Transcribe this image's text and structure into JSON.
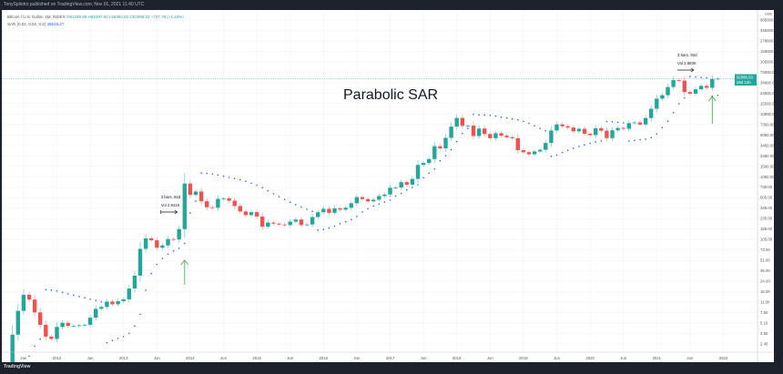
{
  "header": {
    "published": "TonySpilotro published on TradingView.com, Nov 01, 2021 11:40 UTC"
  },
  "legend": {
    "symbol": "Bitcoin / U.S. Dollar, 1M, INDEX",
    "open": "O61299.86",
    "high": "H62497.50",
    "low": "L59484.82",
    "close": "C62086.03",
    "change": "+727.78 (+1.19%)",
    "sar_label": "SAR (0.02, 0.02, 0.2)",
    "sar_value": "39519.27"
  },
  "footer": {
    "logo": "TradingView"
  },
  "colors": {
    "up": "#26a69a",
    "down": "#ef5350",
    "sar": "#2962ff",
    "arrow": "#4caf50"
  },
  "chart_data": {
    "type": "candlestick",
    "title": "Parabolic SAR",
    "scale": "log",
    "currency": "USD",
    "start": "2011-02",
    "interval": "1M",
    "closes": [
      0.86,
      0.78,
      3.5,
      8.7,
      16.1,
      13.4,
      8.2,
      5.1,
      3.25,
      2.97,
      4.7,
      5.5,
      4.9,
      4.9,
      5.0,
      5.1,
      6.7,
      9.4,
      10.1,
      12.4,
      11.2,
      12.6,
      13.5,
      20.4,
      33.4,
      93,
      139,
      129,
      97,
      106,
      135,
      133,
      198,
      1130,
      732,
      832,
      573,
      457,
      447,
      628,
      640,
      586,
      478,
      388,
      338,
      378,
      320,
      217,
      254,
      244,
      236,
      230,
      263,
      285,
      231,
      236,
      314,
      377,
      430,
      368,
      437,
      416,
      448,
      531,
      673,
      624,
      573,
      608,
      700,
      742,
      963,
      970,
      1190,
      1080,
      1350,
      2300,
      2480,
      2875,
      4700,
      4340,
      6470,
      9950,
      13850,
      10220,
      10330,
      6930,
      9240,
      7490,
      6390,
      7730,
      7030,
      6630,
      6370,
      4040,
      3740,
      3460,
      3850,
      4100,
      5320,
      8570,
      10820,
      10080,
      9600,
      8300,
      9150,
      7570,
      7200,
      9350,
      8520,
      6410,
      8630,
      9450,
      9140,
      11350,
      11650,
      10780,
      13800,
      19700,
      28990,
      33100,
      45200,
      58800,
      57700,
      37300,
      35040,
      41460,
      47100,
      43800,
      61300,
      62086.03
    ],
    "y_ticks": [
      "585000.00",
      "345000.00",
      "278000.00",
      "155000.00",
      "105000.00",
      "73000.00",
      "34600.00",
      "23500.00",
      "15500.00",
      "10900.00",
      "7300.00",
      "5050.00",
      "3450.00",
      "2350.00",
      "1590.00",
      "1050.00",
      "730.00",
      "505.00",
      "345.00",
      "235.00",
      "155.00",
      "105.00",
      "73.00",
      "51.00",
      "35.00",
      "24.00",
      "16.00",
      "11.00",
      "7.50",
      "5.10",
      "3.50",
      "2.45"
    ],
    "y_unit": "USD",
    "x_ticks": [
      "Jun",
      "2012",
      "Jun",
      "2013",
      "Jun",
      "2014",
      "Jun",
      "2015",
      "Jun",
      "2016",
      "Jun",
      "2017",
      "Jun",
      "2018",
      "Jun",
      "2019",
      "Jun",
      "2020",
      "Jun",
      "2021",
      "Jun",
      "2022"
    ],
    "current_price_label": "62086.03",
    "current_countdown": "29d 12h",
    "sar_params": [
      0.02,
      0.02,
      0.2
    ],
    "annotations": [
      {
        "text1": "3 bars, 92d",
        "text2": "Vol 2.841K",
        "month_index": 32
      },
      {
        "text1": "3 bars, 92d",
        "text2": "Vol 2.883K",
        "month_index": 125
      }
    ]
  }
}
